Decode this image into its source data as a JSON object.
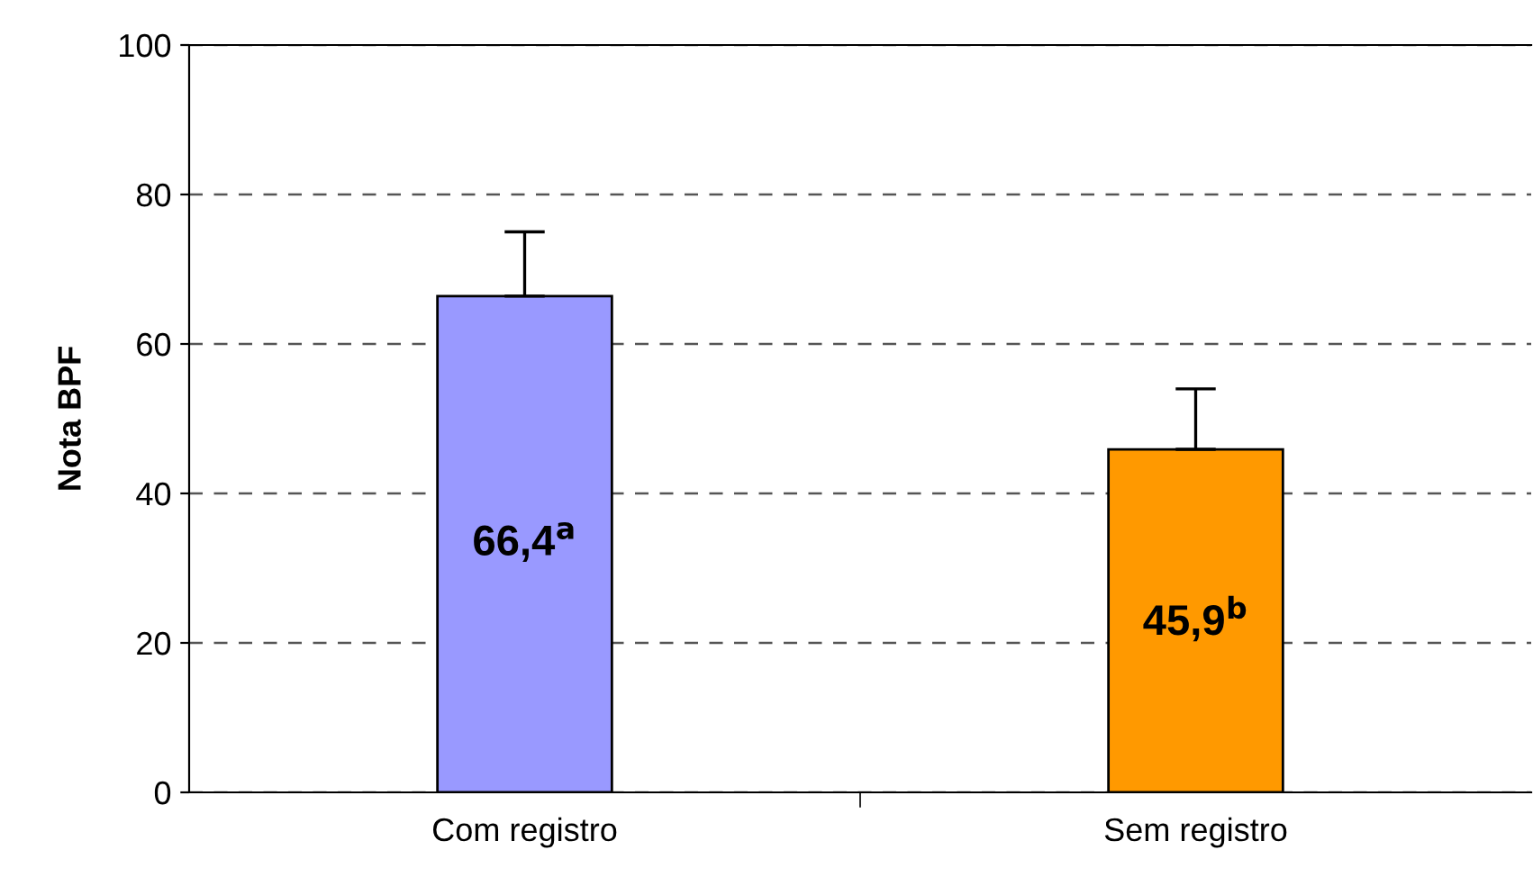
{
  "chart_data": {
    "type": "bar",
    "ylabel": "Nota BPF",
    "categories": [
      "Com registro",
      "Sem registro"
    ],
    "values": [
      66.4,
      45.9
    ],
    "colors": [
      "#9999ff",
      "#ff9900"
    ],
    "errors": [
      [
        66.4,
        75.0
      ],
      [
        45.9,
        54.0
      ]
    ],
    "value_labels": [
      "66,4$^{a}$",
      "45,9$^{b}$"
    ],
    "ylim": [
      0,
      100
    ],
    "yticks": [
      0,
      20,
      40,
      60,
      80,
      100
    ],
    "grid": "y"
  }
}
